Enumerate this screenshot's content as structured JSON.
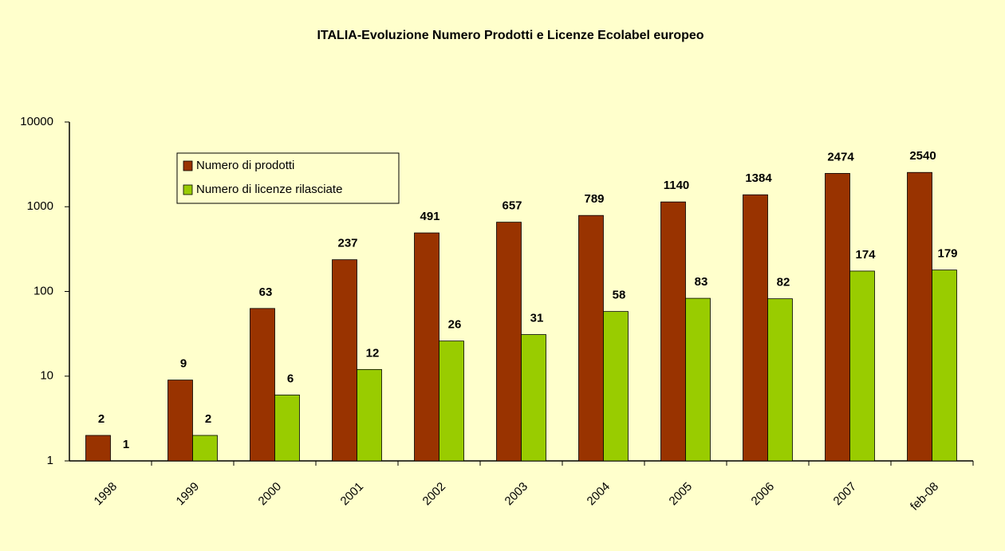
{
  "chart_data": {
    "type": "bar",
    "title": "ITALIA-Evoluzione Numero Prodotti e  Licenze Ecolabel europeo",
    "categories": [
      "1998",
      "1999",
      "2000",
      "2001",
      "2002",
      "2003",
      "2004",
      "2005",
      "2006",
      "2007",
      "feb-08"
    ],
    "series": [
      {
        "name": "Numero di prodotti",
        "color": "#993300",
        "values": [
          2,
          9,
          63,
          237,
          491,
          657,
          789,
          1140,
          1384,
          2474,
          2540
        ]
      },
      {
        "name": "Numero di licenze rilasciate",
        "color": "#99cc00",
        "values": [
          1,
          2,
          6,
          12,
          26,
          31,
          58,
          83,
          82,
          174,
          179
        ]
      }
    ],
    "ylim": [
      1,
      10000
    ],
    "yticks": [
      1,
      10,
      100,
      1000,
      10000
    ],
    "log_scale": true,
    "grid": false,
    "legend_position": "upper left"
  }
}
